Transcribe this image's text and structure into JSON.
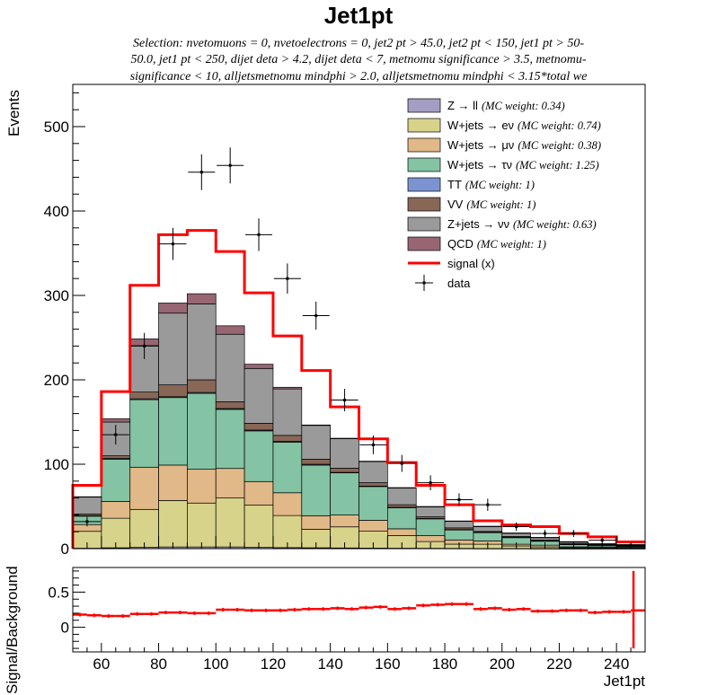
{
  "chart_data": [
    {
      "type": "bar",
      "stacked": true,
      "title": "Jet1pt",
      "subtitle_lines": [
        "Selection: nvetomuons = 0, nvetoelectrons = 0, jet2 pt > 45.0, jet2 pt < 150, jet1 pt > 50-",
        "50.0, jet1 pt < 250, dijet deta > 4.2, dijet deta < 7, metnomu significance > 3.5, metnomu-",
        "significance < 10, alljetsmetnomu mindphi > 2.0, alljetsmetnomu mindphi < 3.15*total we"
      ],
      "xlabel": "Jet1pt",
      "ylabel": "Events",
      "xlim": [
        50,
        250
      ],
      "ylim": [
        0,
        550
      ],
      "xticks": [
        60,
        80,
        100,
        120,
        140,
        160,
        180,
        200,
        220,
        240
      ],
      "yticks": [
        0,
        100,
        200,
        300,
        400,
        500
      ],
      "bin_edges": [
        50,
        60,
        70,
        80,
        90,
        100,
        110,
        120,
        130,
        140,
        150,
        160,
        170,
        180,
        190,
        200,
        210,
        220,
        230,
        240,
        250
      ],
      "series": [
        {
          "name": "Z → ll",
          "weight": "(MC weight: 0.34)",
          "color": "#a49ec4",
          "values": [
            0.5,
            1,
            1.5,
            2,
            2,
            2,
            1.5,
            1.2,
            1,
            0.8,
            0.6,
            0.5,
            0.4,
            0.3,
            0.2,
            0.2,
            0.1,
            0.1,
            0.1,
            0.1
          ]
        },
        {
          "name": "W+jets → eν",
          "weight": "(MC weight: 0.74)",
          "color": "#d7d38a",
          "values": [
            20,
            35,
            45,
            55,
            52,
            58,
            50,
            38,
            22,
            25,
            20,
            15,
            8,
            5,
            5,
            3,
            2,
            1,
            1,
            1
          ]
        },
        {
          "name": "W+jets → μν",
          "weight": "(MC weight: 0.38)",
          "color": "#e1b887",
          "values": [
            8,
            20,
            50,
            42,
            40,
            35,
            28,
            27,
            16,
            14,
            13,
            8,
            7,
            5,
            4,
            2,
            2,
            1,
            1,
            1
          ]
        },
        {
          "name": "W+jets → τν",
          "weight": "(MC weight: 1.25)",
          "color": "#84c3a3",
          "values": [
            10,
            50,
            80,
            80,
            90,
            70,
            60,
            60,
            60,
            50,
            40,
            25,
            20,
            12,
            10,
            8,
            5,
            3,
            2,
            1
          ]
        },
        {
          "name": "TT",
          "weight": "(MC weight: 1)",
          "color": "#7b94d1",
          "values": [
            0.5,
            1,
            1,
            1,
            1,
            1,
            1,
            1,
            1,
            0.5,
            0.5,
            0.5,
            0.3,
            0.3,
            0.2,
            0.2,
            0.1,
            0.1,
            0.1,
            0.1
          ]
        },
        {
          "name": "VV",
          "weight": "(MC weight: 1)",
          "color": "#886757",
          "values": [
            2,
            3,
            8,
            14,
            15,
            8,
            8,
            7,
            6,
            5,
            4,
            3,
            2,
            2,
            1,
            1,
            1,
            1,
            0.5,
            0.5
          ]
        },
        {
          "name": "Z+jets → νν",
          "weight": "(MC weight: 0.63)",
          "color": "#9a9a9a",
          "values": [
            20,
            40,
            55,
            85,
            90,
            80,
            65,
            55,
            40,
            35,
            25,
            20,
            12,
            8,
            6,
            4,
            3,
            2,
            1,
            1
          ]
        },
        {
          "name": "QCD",
          "weight": "(MC weight: 1)",
          "color": "#976672",
          "values": [
            0.5,
            4,
            8,
            12,
            12,
            10,
            5,
            2,
            0.5,
            0.5,
            0.5,
            0.3,
            0.2,
            0.2,
            0.1,
            0.1,
            0.1,
            0.1,
            0.1,
            0.1
          ]
        }
      ],
      "signal": {
        "name": "signal (x)",
        "color": "#ff0000",
        "values": [
          75,
          186,
          312,
          372,
          377,
          352,
          303,
          252,
          211,
          168,
          130,
          102,
          75,
          52,
          33,
          28,
          26,
          18,
          14,
          8
        ]
      },
      "data": {
        "name": "data",
        "x": [
          55,
          65,
          75,
          85,
          95,
          105,
          115,
          125,
          135,
          145,
          155,
          165,
          175,
          185,
          195,
          205,
          215,
          225,
          235,
          245
        ],
        "values": [
          32,
          135,
          240,
          361,
          446,
          454,
          372,
          320,
          276,
          176,
          123,
          101,
          78,
          58,
          52,
          26,
          18,
          18,
          10,
          4
        ]
      },
      "legend_position": "top-right"
    },
    {
      "type": "line",
      "ylabel": "Signal/Background",
      "xlabel": "Jet1pt",
      "xlim": [
        50,
        250
      ],
      "ylim": [
        -0.35,
        0.85
      ],
      "xticks": [
        60,
        80,
        100,
        120,
        140,
        160,
        180,
        200,
        220,
        240
      ],
      "yticks": [
        0,
        0.5
      ],
      "ytick_labels": [
        "0",
        "0.5"
      ],
      "color": "#ff0000",
      "x": [
        50,
        55,
        60,
        65,
        70,
        75,
        80,
        85,
        90,
        95,
        100,
        105,
        110,
        115,
        120,
        125,
        130,
        135,
        140,
        145,
        150,
        155,
        160,
        165,
        170,
        175,
        180,
        185,
        190,
        195,
        200,
        205,
        210,
        215,
        220,
        225,
        230,
        235,
        240,
        245
      ],
      "values": [
        0.18,
        0.17,
        0.16,
        0.16,
        0.19,
        0.19,
        0.21,
        0.21,
        0.2,
        0.2,
        0.25,
        0.25,
        0.24,
        0.24,
        0.24,
        0.25,
        0.26,
        0.26,
        0.27,
        0.26,
        0.28,
        0.29,
        0.26,
        0.27,
        0.31,
        0.32,
        0.33,
        0.33,
        0.26,
        0.27,
        0.25,
        0.26,
        0.23,
        0.23,
        0.24,
        0.24,
        0.21,
        0.22,
        0.22,
        0.24
      ]
    }
  ]
}
